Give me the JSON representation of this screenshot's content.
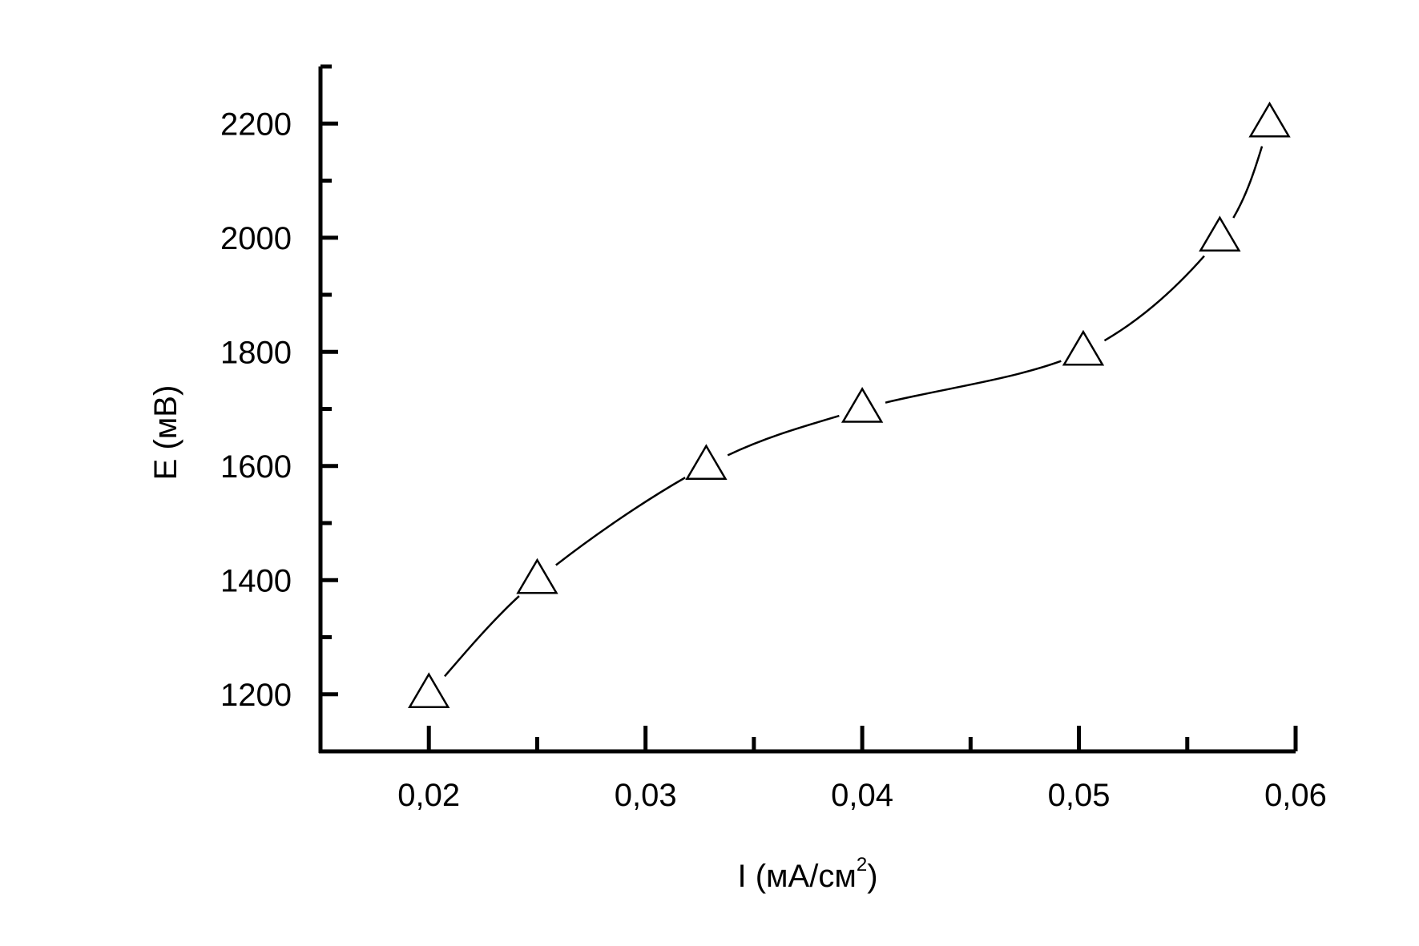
{
  "chart_data": {
    "type": "line",
    "title": "",
    "xlabel_main": "I (мА/см",
    "xlabel_sup": "2",
    "xlabel_end": ")",
    "ylabel": "E (мВ)",
    "xlim": [
      0.015,
      0.06
    ],
    "ylim": [
      1100,
      2300
    ],
    "x_ticks": [
      0.02,
      0.03,
      0.04,
      0.05,
      0.06
    ],
    "x_tick_labels": [
      "0,02",
      "0,03",
      "0,04",
      "0,05",
      "0,06"
    ],
    "x_minor_ticks": [
      0.025,
      0.035,
      0.045,
      0.055
    ],
    "y_ticks": [
      1200,
      1400,
      1600,
      1800,
      2000,
      2200
    ],
    "y_tick_labels": [
      "1200",
      "1400",
      "1600",
      "1800",
      "2000",
      "2200"
    ],
    "y_minor_ticks": [
      1300,
      1500,
      1700,
      1900,
      2100,
      2300
    ],
    "marker": "open-triangle",
    "grid": false,
    "series": [
      {
        "x": [
          0.02,
          0.025,
          0.0328,
          0.04,
          0.0502,
          0.0565,
          0.0588
        ],
        "y": [
          1200,
          1400,
          1600,
          1700,
          1800,
          2000,
          2200
        ]
      }
    ]
  }
}
